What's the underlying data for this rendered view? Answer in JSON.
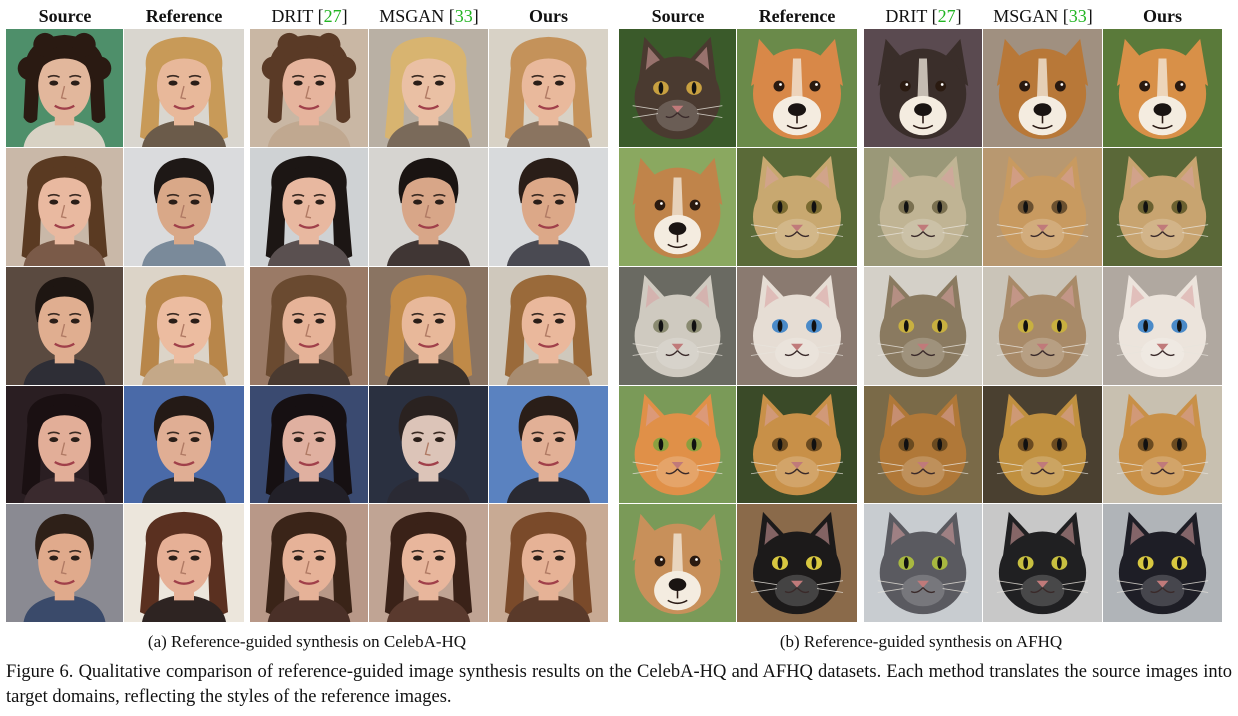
{
  "headers": {
    "celeba": [
      {
        "label": "Source",
        "bold": true
      },
      {
        "label": "Reference",
        "bold": true
      },
      {
        "label": "DRIT",
        "ref": "27",
        "bold": false
      },
      {
        "label": "MSGAN",
        "ref": "33",
        "bold": false
      },
      {
        "label": "Ours",
        "bold": true
      }
    ],
    "afhq": [
      {
        "label": "Source",
        "bold": true
      },
      {
        "label": "Reference",
        "bold": true
      },
      {
        "label": "DRIT",
        "ref": "27",
        "bold": false
      },
      {
        "label": "MSGAN",
        "ref": "33",
        "bold": false
      },
      {
        "label": "Ours",
        "bold": true
      }
    ]
  },
  "colors": {
    "ref_link": "#22b422"
  },
  "panels": {
    "celeba": {
      "rows": [
        [
          {
            "kind": "face",
            "bg": "#4e8f6a",
            "skin": "#e2b79c",
            "hair": "#2a1a12",
            "shirt": "#d8d2c4",
            "style": "curly"
          },
          {
            "kind": "face",
            "bg": "#d9d6cf",
            "skin": "#e8b89a",
            "hair": "#c89a58",
            "shirt": "#6b5b4a",
            "style": "long"
          },
          {
            "kind": "face",
            "bg": "#c9b7a4",
            "skin": "#e6b49d",
            "hair": "#5a3a26",
            "shirt": "#c0a890",
            "style": "curly"
          },
          {
            "kind": "face",
            "bg": "#b9b0a4",
            "skin": "#eac0a4",
            "hair": "#d8b470",
            "shirt": "#7a6a5a",
            "style": "long"
          },
          {
            "kind": "face",
            "bg": "#d8d2c6",
            "skin": "#e9b99c",
            "hair": "#c4925a",
            "shirt": "#8a7460",
            "style": "long"
          }
        ],
        [
          {
            "kind": "face",
            "bg": "#c9b8a8",
            "skin": "#e9b9a0",
            "hair": "#5a3a22",
            "shirt": "#7a5a48",
            "style": "long"
          },
          {
            "kind": "face",
            "bg": "#dadbdd",
            "skin": "#d9a888",
            "hair": "#1e1816",
            "shirt": "#7a8a9a",
            "style": "short"
          },
          {
            "kind": "face",
            "bg": "#cfd2d4",
            "skin": "#e8b8a0",
            "hair": "#1c1614",
            "shirt": "#5a5050",
            "style": "long"
          },
          {
            "kind": "face",
            "bg": "#d6d4d0",
            "skin": "#d8a688",
            "hair": "#1a1412",
            "shirt": "#403634",
            "style": "short"
          },
          {
            "kind": "face",
            "bg": "#d8dadc",
            "skin": "#dca888",
            "hair": "#2a1e18",
            "shirt": "#4a4a52",
            "style": "short"
          }
        ],
        [
          {
            "kind": "face",
            "bg": "#5a4a40",
            "skin": "#e0ae90",
            "hair": "#1e1612",
            "shirt": "#2e2e36",
            "style": "short"
          },
          {
            "kind": "face",
            "bg": "#dcd4c8",
            "skin": "#ecbca0",
            "hair": "#b8864a",
            "shirt": "#c4a888",
            "style": "long"
          },
          {
            "kind": "face",
            "bg": "#9a7a66",
            "skin": "#e6b398",
            "hair": "#6a4a30",
            "shirt": "#4a3a30",
            "style": "long"
          },
          {
            "kind": "face",
            "bg": "#8a7462",
            "skin": "#e8b89a",
            "hair": "#c08a48",
            "shirt": "#3a302a",
            "style": "long"
          },
          {
            "kind": "face",
            "bg": "#cfc8bc",
            "skin": "#eab89c",
            "hair": "#9a6a3a",
            "shirt": "#a88c70",
            "style": "long"
          }
        ],
        [
          {
            "kind": "face",
            "bg": "#2a1e22",
            "skin": "#e2ae98",
            "hair": "#1a1012",
            "shirt": "#3a2a2e",
            "style": "long"
          },
          {
            "kind": "face",
            "bg": "#4a6aa8",
            "skin": "#e0ae94",
            "hair": "#241a16",
            "shirt": "#2a2a30",
            "style": "short"
          },
          {
            "kind": "face",
            "bg": "#3a4a70",
            "skin": "#e0b0a0",
            "hair": "#161012",
            "shirt": "#222028",
            "style": "long"
          },
          {
            "kind": "face",
            "bg": "#2a3040",
            "skin": "#dcc4b8",
            "hair": "#2a2220",
            "shirt": "#2a2a34",
            "style": "short"
          },
          {
            "kind": "face",
            "bg": "#5a82c0",
            "skin": "#e2b096",
            "hair": "#2a1e18",
            "shirt": "#2a2a32",
            "style": "short"
          }
        ],
        [
          {
            "kind": "face",
            "bg": "#8a8a92",
            "skin": "#e0aa8c",
            "hair": "#2e2018",
            "shirt": "#3a4a6a",
            "style": "short"
          },
          {
            "kind": "face",
            "bg": "#ece6dc",
            "skin": "#e6b096",
            "hair": "#5a3020",
            "shirt": "#2e2422",
            "style": "long"
          },
          {
            "kind": "face",
            "bg": "#b89888",
            "skin": "#e6b298",
            "hair": "#3a2418",
            "shirt": "#4a3028",
            "style": "long"
          },
          {
            "kind": "face",
            "bg": "#c0a494",
            "skin": "#e8b69c",
            "hair": "#3a2218",
            "shirt": "#5a3a2e",
            "style": "long"
          },
          {
            "kind": "face",
            "bg": "#c8aa94",
            "skin": "#e6b296",
            "hair": "#7a4a2a",
            "shirt": "#5a3a2a",
            "style": "long"
          }
        ]
      ]
    },
    "afhq": {
      "rows": [
        [
          {
            "kind": "cat",
            "bg": "#3a5a2a",
            "fur": "#4a3a30",
            "eye": "#c8a040"
          },
          {
            "kind": "dog",
            "bg": "#6a8a4a",
            "fur": "#d88848",
            "eye": "#2a1a10"
          },
          {
            "kind": "dog",
            "bg": "#5a4a50",
            "fur": "#3a2e2a",
            "eye": "#2a1a10"
          },
          {
            "kind": "dog",
            "bg": "#a09080",
            "fur": "#b87838",
            "eye": "#2a1a10"
          },
          {
            "kind": "dog",
            "bg": "#5a7a3a",
            "fur": "#d89048",
            "eye": "#2a1a10"
          }
        ],
        [
          {
            "kind": "dog",
            "bg": "#8aa860",
            "fur": "#c0844a",
            "eye": "#2a1a10"
          },
          {
            "kind": "cat",
            "bg": "#5a6a38",
            "fur": "#c8a870",
            "eye": "#7a6a30"
          },
          {
            "kind": "cat",
            "bg": "#9a9878",
            "fur": "#c0b494",
            "eye": "#7a7050"
          },
          {
            "kind": "cat",
            "bg": "#b89870",
            "fur": "#c89a60",
            "eye": "#6a5030"
          },
          {
            "kind": "cat",
            "bg": "#5a6838",
            "fur": "#c8a470",
            "eye": "#6a6030"
          }
        ],
        [
          {
            "kind": "cat",
            "bg": "#6a6a62",
            "fur": "#cfcac0",
            "eye": "#8a8a70"
          },
          {
            "kind": "cat",
            "bg": "#8a7a70",
            "fur": "#e6ddd4",
            "eye": "#4a8ac8"
          },
          {
            "kind": "cat",
            "bg": "#d4d0c8",
            "fur": "#8a7a60",
            "eye": "#c8b040"
          },
          {
            "kind": "cat",
            "bg": "#cac4b8",
            "fur": "#a88a68",
            "eye": "#c8b040"
          },
          {
            "kind": "cat",
            "bg": "#b0a8a0",
            "fur": "#ece4dc",
            "eye": "#4a8ac8"
          }
        ],
        [
          {
            "kind": "cat",
            "bg": "#7a9a58",
            "fur": "#e09048",
            "eye": "#8aa040"
          },
          {
            "kind": "cat",
            "bg": "#3a4a28",
            "fur": "#c89048",
            "eye": "#6a4a20"
          },
          {
            "kind": "cat",
            "bg": "#7a6a48",
            "fur": "#b07838",
            "eye": "#6a4a20"
          },
          {
            "kind": "cat",
            "bg": "#4a4030",
            "fur": "#c09040",
            "eye": "#6a4a20"
          },
          {
            "kind": "cat",
            "bg": "#c8c0b0",
            "fur": "#c89048",
            "eye": "#6a4a20"
          }
        ],
        [
          {
            "kind": "dog",
            "bg": "#7a9a58",
            "fur": "#c8905a",
            "eye": "#2a1a10"
          },
          {
            "kind": "cat",
            "bg": "#8a6a4a",
            "fur": "#1c1a1a",
            "eye": "#d8c840"
          },
          {
            "kind": "cat",
            "bg": "#c8ccd0",
            "fur": "#5a5a60",
            "eye": "#a8b840"
          },
          {
            "kind": "cat",
            "bg": "#c8c8c8",
            "fur": "#202022",
            "eye": "#c8c040"
          },
          {
            "kind": "cat",
            "bg": "#b0b4b8",
            "fur": "#1e1e26",
            "eye": "#d8c840"
          }
        ]
      ]
    }
  },
  "subcaptions": {
    "a": "(a) Reference-guided synthesis on CelebA-HQ",
    "b": "(b) Reference-guided synthesis on AFHQ"
  },
  "figure_caption": "Figure 6. Qualitative comparison of reference-guided image synthesis results on the CelebA-HQ and AFHQ datasets. Each method translates the source images into target domains, reflecting the styles of the reference images."
}
